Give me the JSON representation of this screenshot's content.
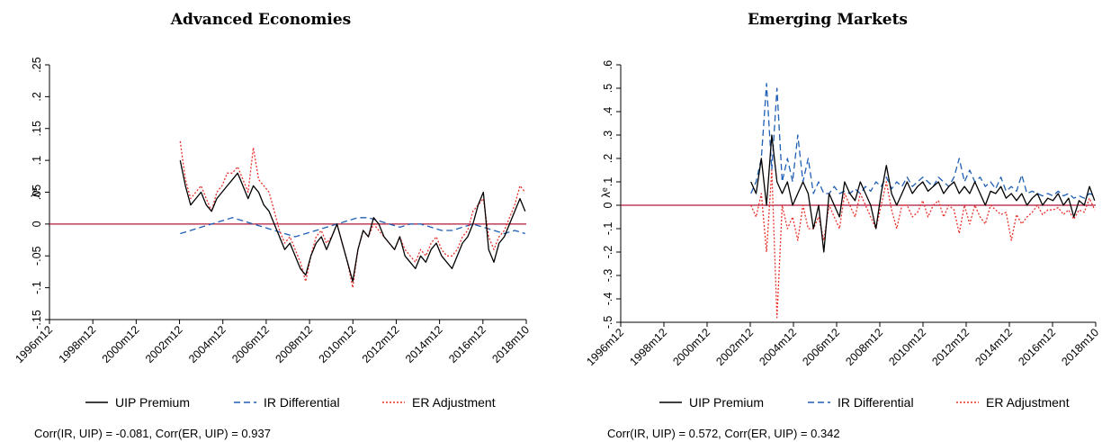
{
  "chart_data": [
    {
      "type": "line",
      "title": "Advanced Economies",
      "ylabel": "λᵉ",
      "xlim": [
        1996.0,
        2018.8
      ],
      "ylim": [
        -0.15,
        0.25
      ],
      "x_ticks": [
        "1996m12",
        "1998m12",
        "2000m12",
        "2002m12",
        "2004m12",
        "2006m12",
        "2008m12",
        "2010m12",
        "2012m12",
        "2014m12",
        "2016m12",
        "2018m10"
      ],
      "y_ticks": [
        "-.15",
        "-.1",
        "-.05",
        "0",
        ".05",
        ".1",
        ".15",
        ".2",
        ".25"
      ],
      "zero_line_color": "#b0183a",
      "legend": [
        "UIP Premium",
        "IR Differential",
        "ER Adjustment"
      ],
      "note": "Corr(IR, UIP) = -0.081, Corr(ER, UIP) = 0.937",
      "series": [
        {
          "name": "UIP Premium",
          "color": "#000000",
          "style": "solid",
          "x": [
            2002.25,
            2002.5,
            2002.75,
            2003.0,
            2003.25,
            2003.5,
            2003.75,
            2004.0,
            2004.25,
            2004.5,
            2004.75,
            2005.0,
            2005.25,
            2005.5,
            2005.75,
            2006.0,
            2006.25,
            2006.5,
            2006.75,
            2007.0,
            2007.25,
            2007.5,
            2007.75,
            2008.0,
            2008.25,
            2008.5,
            2008.75,
            2009.0,
            2009.25,
            2009.5,
            2009.75,
            2010.0,
            2010.25,
            2010.5,
            2010.75,
            2011.0,
            2011.25,
            2011.5,
            2011.75,
            2012.0,
            2012.25,
            2012.5,
            2012.75,
            2013.0,
            2013.25,
            2013.5,
            2013.75,
            2014.0,
            2014.25,
            2014.5,
            2014.75,
            2015.0,
            2015.25,
            2015.5,
            2015.75,
            2016.0,
            2016.25,
            2016.5,
            2016.75,
            2017.0,
            2017.25,
            2017.5,
            2017.75,
            2018.0,
            2018.25,
            2018.5,
            2018.75
          ],
          "y": [
            0.1,
            0.06,
            0.03,
            0.04,
            0.05,
            0.03,
            0.02,
            0.04,
            0.05,
            0.06,
            0.07,
            0.08,
            0.06,
            0.04,
            0.06,
            0.05,
            0.03,
            0.02,
            0.0,
            -0.02,
            -0.04,
            -0.03,
            -0.05,
            -0.07,
            -0.08,
            -0.05,
            -0.03,
            -0.02,
            -0.04,
            -0.02,
            0.0,
            -0.03,
            -0.06,
            -0.09,
            -0.04,
            -0.01,
            -0.02,
            0.01,
            0.0,
            -0.02,
            -0.03,
            -0.04,
            -0.02,
            -0.05,
            -0.06,
            -0.07,
            -0.05,
            -0.06,
            -0.04,
            -0.03,
            -0.05,
            -0.06,
            -0.07,
            -0.05,
            -0.03,
            -0.02,
            0.0,
            0.03,
            0.05,
            -0.04,
            -0.06,
            -0.03,
            -0.02,
            0.0,
            0.02,
            0.04,
            0.02
          ]
        },
        {
          "name": "IR Differential",
          "color": "#1f5fb4",
          "style": "dashed",
          "x": [
            2002.25,
            2002.75,
            2003.25,
            2003.75,
            2004.25,
            2004.75,
            2005.25,
            2005.75,
            2006.25,
            2006.75,
            2007.25,
            2007.75,
            2008.25,
            2008.75,
            2009.25,
            2009.75,
            2010.25,
            2010.75,
            2011.25,
            2011.75,
            2012.25,
            2012.75,
            2013.25,
            2013.75,
            2014.25,
            2014.75,
            2015.25,
            2015.75,
            2016.25,
            2016.75,
            2017.25,
            2017.75,
            2018.25,
            2018.75
          ],
          "y": [
            -0.015,
            -0.01,
            -0.005,
            0.0,
            0.005,
            0.01,
            0.005,
            0.0,
            -0.005,
            -0.01,
            -0.015,
            -0.02,
            -0.015,
            -0.01,
            -0.005,
            0.0,
            0.005,
            0.01,
            0.01,
            0.005,
            0.0,
            -0.005,
            0.0,
            0.0,
            -0.005,
            -0.01,
            -0.01,
            -0.005,
            0.0,
            -0.005,
            -0.01,
            -0.015,
            -0.01,
            -0.015
          ]
        },
        {
          "name": "ER Adjustment",
          "color": "#e8302a",
          "style": "dotted",
          "x": [
            2002.25,
            2002.5,
            2002.75,
            2003.0,
            2003.25,
            2003.5,
            2003.75,
            2004.0,
            2004.25,
            2004.5,
            2004.75,
            2005.0,
            2005.25,
            2005.5,
            2005.75,
            2006.0,
            2006.25,
            2006.5,
            2006.75,
            2007.0,
            2007.25,
            2007.5,
            2007.75,
            2008.0,
            2008.25,
            2008.5,
            2008.75,
            2009.0,
            2009.25,
            2009.5,
            2009.75,
            2010.0,
            2010.25,
            2010.5,
            2010.75,
            2011.0,
            2011.25,
            2011.5,
            2011.75,
            2012.0,
            2012.25,
            2012.5,
            2012.75,
            2013.0,
            2013.25,
            2013.5,
            2013.75,
            2014.0,
            2014.25,
            2014.5,
            2014.75,
            2015.0,
            2015.25,
            2015.5,
            2015.75,
            2016.0,
            2016.25,
            2016.5,
            2016.75,
            2017.0,
            2017.25,
            2017.5,
            2017.75,
            2018.0,
            2018.25,
            2018.5,
            2018.75
          ],
          "y": [
            0.13,
            0.07,
            0.04,
            0.05,
            0.06,
            0.04,
            0.02,
            0.05,
            0.06,
            0.08,
            0.08,
            0.09,
            0.07,
            0.05,
            0.12,
            0.07,
            0.06,
            0.05,
            0.02,
            -0.01,
            -0.03,
            -0.02,
            -0.04,
            -0.06,
            -0.09,
            -0.05,
            -0.02,
            -0.01,
            -0.03,
            -0.02,
            0.0,
            -0.03,
            -0.06,
            -0.1,
            -0.04,
            -0.01,
            -0.02,
            0.0,
            -0.01,
            -0.02,
            -0.03,
            -0.04,
            -0.02,
            -0.04,
            -0.05,
            -0.06,
            -0.04,
            -0.05,
            -0.03,
            -0.02,
            -0.04,
            -0.05,
            -0.05,
            -0.04,
            -0.02,
            -0.01,
            0.02,
            0.03,
            0.04,
            -0.02,
            -0.04,
            -0.02,
            -0.01,
            0.01,
            0.03,
            0.06,
            0.05
          ]
        }
      ]
    },
    {
      "type": "line",
      "title": "Emerging Markets",
      "ylabel": "λᵉ",
      "xlim": [
        1996.0,
        2018.8
      ],
      "ylim": [
        -0.5,
        0.6
      ],
      "x_ticks": [
        "1996m12",
        "1998m12",
        "2000m12",
        "2002m12",
        "2004m12",
        "2006m12",
        "2008m12",
        "2010m12",
        "2012m12",
        "2014m12",
        "2016m12",
        "2018m10"
      ],
      "y_ticks": [
        "-.5",
        "-.4",
        "-.3",
        "-.2",
        "-.1",
        "0",
        ".1",
        ".2",
        ".3",
        ".4",
        ".5",
        ".6"
      ],
      "zero_line_color": "#b0183a",
      "legend": [
        "UIP Premium",
        "IR Differential",
        "ER Adjustment"
      ],
      "note": "Corr(IR, UIP) = 0.572, Corr(ER, UIP) = 0.342",
      "series": [
        {
          "name": "UIP Premium",
          "color": "#000000",
          "style": "solid",
          "x": [
            2002.25,
            2002.5,
            2002.75,
            2003.0,
            2003.25,
            2003.5,
            2003.75,
            2004.0,
            2004.25,
            2004.5,
            2004.75,
            2005.0,
            2005.25,
            2005.5,
            2005.75,
            2006.0,
            2006.25,
            2006.5,
            2006.75,
            2007.0,
            2007.25,
            2007.5,
            2007.75,
            2008.0,
            2008.25,
            2008.5,
            2008.75,
            2009.0,
            2009.25,
            2009.5,
            2009.75,
            2010.0,
            2010.25,
            2010.5,
            2010.75,
            2011.0,
            2011.25,
            2011.5,
            2011.75,
            2012.0,
            2012.25,
            2012.5,
            2012.75,
            2013.0,
            2013.25,
            2013.5,
            2013.75,
            2014.0,
            2014.25,
            2014.5,
            2014.75,
            2015.0,
            2015.25,
            2015.5,
            2015.75,
            2016.0,
            2016.25,
            2016.5,
            2016.75,
            2017.0,
            2017.25,
            2017.5,
            2017.75,
            2018.0,
            2018.25,
            2018.5,
            2018.75
          ],
          "y": [
            0.1,
            0.05,
            0.2,
            0.0,
            0.3,
            0.1,
            0.05,
            0.1,
            0.0,
            0.05,
            0.1,
            0.05,
            -0.1,
            0.0,
            -0.2,
            0.05,
            0.0,
            -0.05,
            0.1,
            0.05,
            0.02,
            0.1,
            0.05,
            0.0,
            -0.1,
            0.05,
            0.17,
            0.05,
            0.0,
            0.05,
            0.1,
            0.05,
            0.08,
            0.1,
            0.06,
            0.08,
            0.1,
            0.05,
            0.08,
            0.1,
            0.05,
            0.08,
            0.05,
            0.1,
            0.05,
            0.0,
            0.06,
            0.05,
            0.08,
            0.03,
            0.05,
            0.02,
            0.05,
            0.0,
            0.03,
            0.05,
            0.0,
            0.03,
            0.02,
            0.05,
            0.0,
            0.03,
            -0.05,
            0.02,
            0.0,
            0.08,
            0.02
          ]
        },
        {
          "name": "IR Differential",
          "color": "#1f5fb4",
          "style": "dashed",
          "x": [
            2002.25,
            2002.5,
            2002.75,
            2003.0,
            2003.25,
            2003.5,
            2003.75,
            2004.0,
            2004.25,
            2004.5,
            2004.75,
            2005.0,
            2005.25,
            2005.5,
            2005.75,
            2006.0,
            2006.25,
            2006.5,
            2006.75,
            2007.0,
            2007.25,
            2007.5,
            2007.75,
            2008.0,
            2008.25,
            2008.5,
            2008.75,
            2009.0,
            2009.25,
            2009.5,
            2009.75,
            2010.0,
            2010.25,
            2010.5,
            2010.75,
            2011.0,
            2011.25,
            2011.5,
            2011.75,
            2012.0,
            2012.25,
            2012.5,
            2012.75,
            2013.0,
            2013.25,
            2013.5,
            2013.75,
            2014.0,
            2014.25,
            2014.5,
            2014.75,
            2015.0,
            2015.25,
            2015.5,
            2015.75,
            2016.0,
            2016.25,
            2016.5,
            2016.75,
            2017.0,
            2017.25,
            2017.5,
            2017.75,
            2018.0,
            2018.25,
            2018.5,
            2018.75
          ],
          "y": [
            0.05,
            0.1,
            0.2,
            0.52,
            0.15,
            0.5,
            0.1,
            0.2,
            0.1,
            0.3,
            0.1,
            0.2,
            0.05,
            0.1,
            0.05,
            0.05,
            0.08,
            0.05,
            0.06,
            0.05,
            0.07,
            0.05,
            0.08,
            0.06,
            0.1,
            0.08,
            0.12,
            0.07,
            0.1,
            0.08,
            0.12,
            0.08,
            0.1,
            0.12,
            0.1,
            0.08,
            0.12,
            0.1,
            0.08,
            0.12,
            0.2,
            0.1,
            0.15,
            0.1,
            0.12,
            0.08,
            0.1,
            0.07,
            0.12,
            0.06,
            0.08,
            0.06,
            0.13,
            0.05,
            0.06,
            0.05,
            0.04,
            0.05,
            0.04,
            0.06,
            0.04,
            0.05,
            0.03,
            0.04,
            0.03,
            0.05,
            0.04
          ]
        },
        {
          "name": "ER Adjustment",
          "color": "#e8302a",
          "style": "dotted",
          "x": [
            2002.25,
            2002.5,
            2002.75,
            2003.0,
            2003.25,
            2003.5,
            2003.75,
            2004.0,
            2004.25,
            2004.5,
            2004.75,
            2005.0,
            2005.25,
            2005.5,
            2005.75,
            2006.0,
            2006.25,
            2006.5,
            2006.75,
            2007.0,
            2007.25,
            2007.5,
            2007.75,
            2008.0,
            2008.25,
            2008.5,
            2008.75,
            2009.0,
            2009.25,
            2009.5,
            2009.75,
            2010.0,
            2010.25,
            2010.5,
            2010.75,
            2011.0,
            2011.25,
            2011.5,
            2011.75,
            2012.0,
            2012.25,
            2012.5,
            2012.75,
            2013.0,
            2013.25,
            2013.5,
            2013.75,
            2014.0,
            2014.25,
            2014.5,
            2014.75,
            2015.0,
            2015.25,
            2015.5,
            2015.75,
            2016.0,
            2016.25,
            2016.5,
            2016.75,
            2017.0,
            2017.25,
            2017.5,
            2017.75,
            2018.0,
            2018.25,
            2018.5,
            2018.75
          ],
          "y": [
            0.0,
            -0.05,
            0.05,
            -0.2,
            0.15,
            -0.48,
            0.0,
            -0.1,
            -0.05,
            -0.15,
            0.0,
            -0.1,
            -0.1,
            -0.05,
            -0.15,
            0.0,
            -0.05,
            -0.1,
            0.05,
            0.0,
            -0.05,
            0.05,
            0.0,
            -0.05,
            -0.1,
            0.0,
            0.1,
            -0.02,
            -0.1,
            0.0,
            0.0,
            -0.05,
            -0.03,
            0.02,
            -0.05,
            0.0,
            0.02,
            -0.05,
            0.0,
            -0.02,
            -0.12,
            0.0,
            -0.08,
            0.0,
            -0.05,
            -0.08,
            0.0,
            -0.02,
            -0.04,
            -0.03,
            -0.15,
            -0.04,
            -0.08,
            -0.05,
            -0.03,
            0.0,
            -0.04,
            -0.02,
            -0.02,
            -0.01,
            -0.04,
            -0.02,
            -0.06,
            -0.02,
            -0.03,
            0.03,
            -0.02
          ]
        }
      ]
    }
  ]
}
